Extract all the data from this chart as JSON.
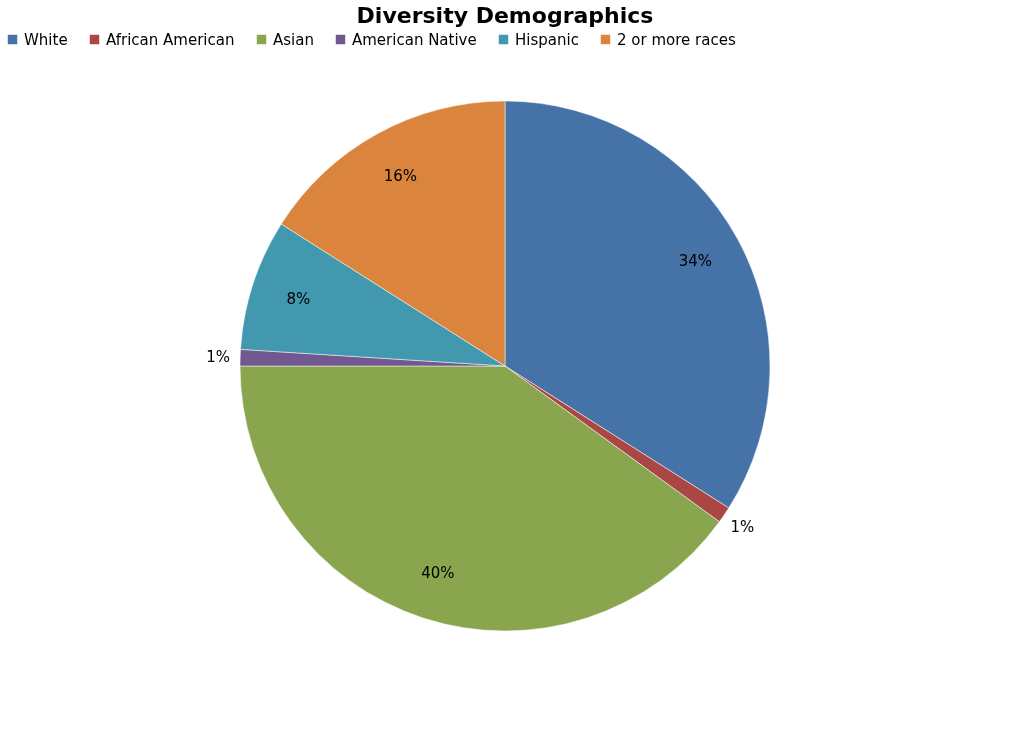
{
  "chart_data": {
    "type": "pie",
    "title": "Diversity Demographics",
    "categories": [
      "White",
      "African American",
      "Asian",
      "American Native",
      "Hispanic",
      "2 or more races"
    ],
    "values": [
      34,
      1,
      40,
      1,
      8,
      16
    ],
    "colors": [
      "#4572a7",
      "#aa4643",
      "#89a54e",
      "#71588f",
      "#4198af",
      "#db843d"
    ],
    "value_labels": [
      "34%",
      "1%",
      "40%",
      "1%",
      "8%",
      "16%"
    ],
    "legend": "top"
  }
}
